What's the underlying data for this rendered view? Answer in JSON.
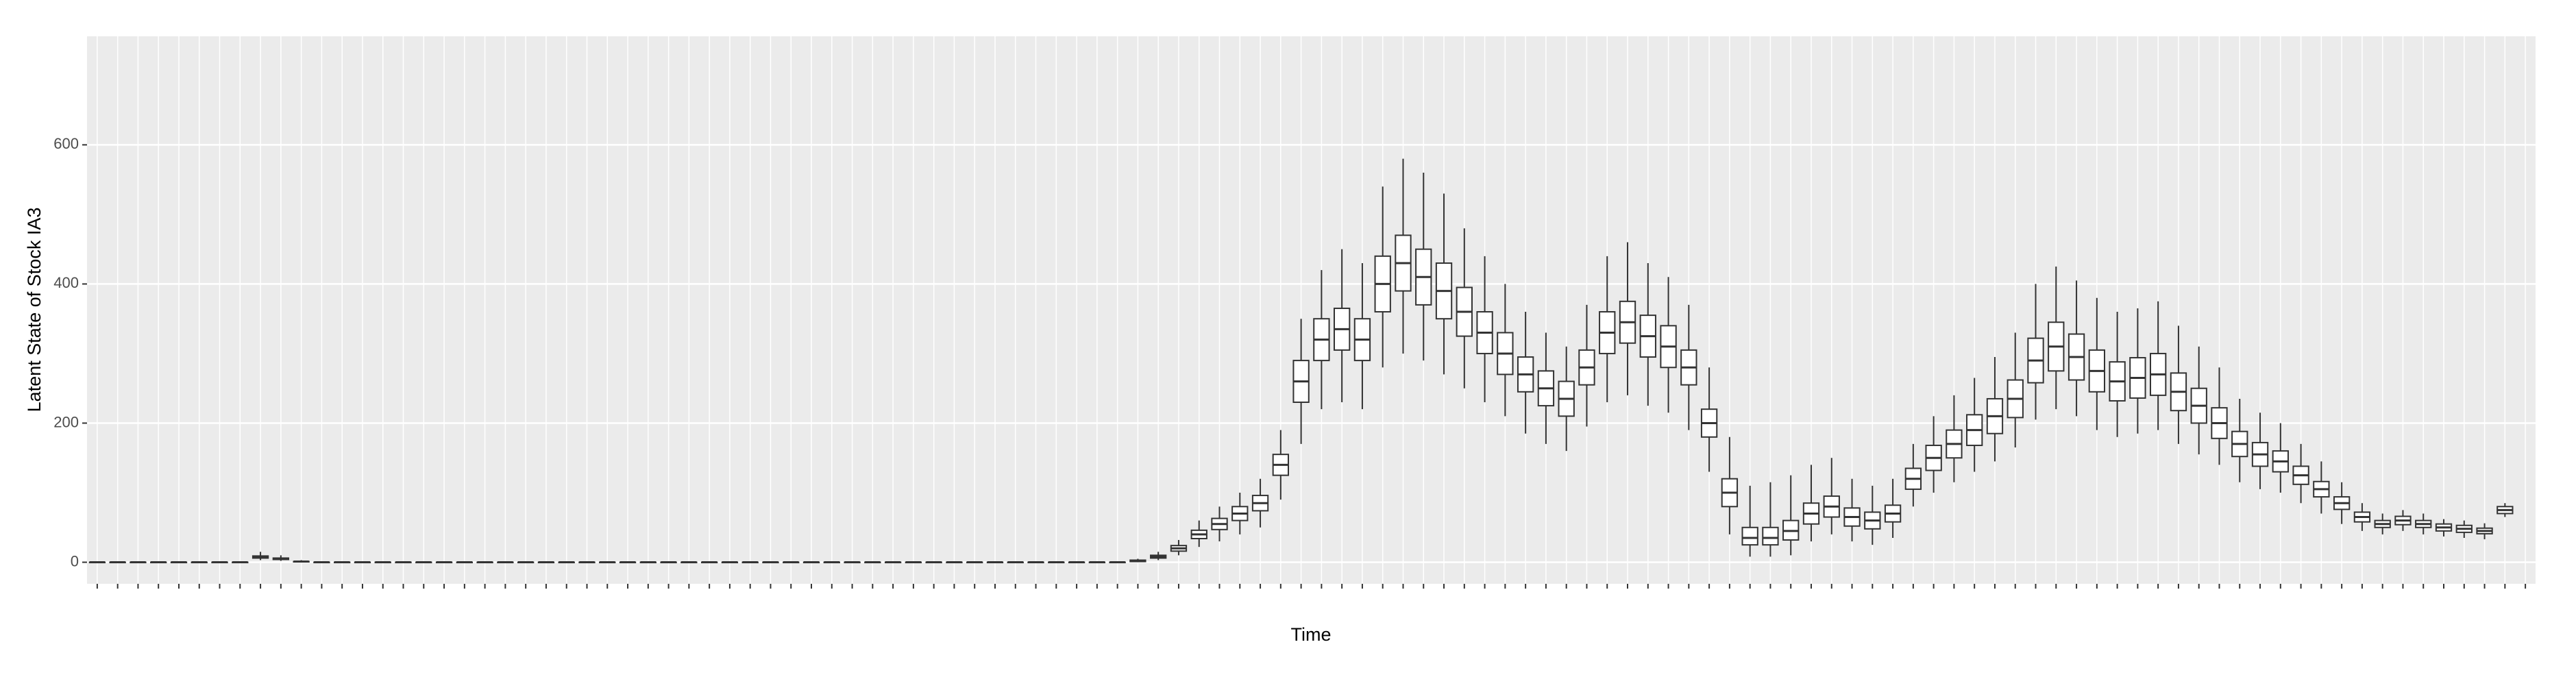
{
  "chart_data": {
    "type": "boxplot",
    "y_label": "Latent State of Stock IA3",
    "x_label": "Time",
    "ylim": [
      -31,
      756
    ],
    "yticks": [
      0,
      200,
      400,
      600
    ],
    "grid": true,
    "color": "#333333",
    "categories": [
      null,
      null,
      null,
      null,
      null,
      null,
      null,
      null,
      null,
      null,
      null,
      null,
      null,
      null,
      null,
      null,
      null,
      null,
      null,
      null,
      null,
      null,
      null,
      null,
      null,
      null,
      null,
      null,
      null,
      null,
      null,
      null,
      null,
      null,
      null,
      null,
      null,
      null,
      null,
      null,
      null,
      null,
      null,
      null,
      null,
      null,
      null,
      null,
      null,
      null,
      null,
      null,
      null,
      null,
      null,
      null,
      null,
      null,
      null,
      null,
      null,
      null,
      null,
      null,
      null,
      null,
      null,
      null,
      null,
      null,
      null,
      null,
      null,
      null,
      null,
      null,
      null,
      null,
      null,
      null,
      null,
      null,
      null,
      null,
      null,
      null,
      null,
      null,
      null,
      null,
      null,
      null,
      null,
      null,
      null,
      null,
      null,
      null,
      null,
      null,
      null,
      null,
      null,
      null,
      null,
      null,
      null,
      null,
      null,
      null,
      null,
      null,
      null,
      null,
      null,
      null,
      null,
      null,
      null,
      null
    ],
    "boxes": [
      [
        0,
        0,
        0,
        0,
        0
      ],
      [
        0,
        0,
        0,
        0,
        0
      ],
      [
        0,
        0,
        0,
        0,
        0
      ],
      [
        0,
        0,
        0,
        0,
        0
      ],
      [
        0,
        0,
        0,
        0,
        0
      ],
      [
        0,
        0,
        0,
        0,
        0
      ],
      [
        0,
        0,
        0,
        0,
        0
      ],
      [
        0,
        0,
        0,
        0,
        0
      ],
      [
        3,
        6,
        7,
        9,
        15
      ],
      [
        2,
        4,
        5,
        6,
        10
      ],
      [
        0,
        1,
        1,
        1,
        3
      ],
      [
        0,
        0,
        0,
        0,
        0
      ],
      [
        0,
        0,
        0,
        0,
        0
      ],
      [
        0,
        0,
        0,
        0,
        0
      ],
      [
        0,
        0,
        0,
        0,
        0
      ],
      [
        0,
        0,
        0,
        0,
        0
      ],
      [
        0,
        0,
        0,
        0,
        0
      ],
      [
        0,
        0,
        0,
        0,
        0
      ],
      [
        0,
        0,
        0,
        0,
        0
      ],
      [
        0,
        0,
        0,
        0,
        0
      ],
      [
        0,
        0,
        0,
        0,
        0
      ],
      [
        0,
        0,
        0,
        0,
        0
      ],
      [
        0,
        0,
        0,
        0,
        0
      ],
      [
        0,
        0,
        0,
        0,
        0
      ],
      [
        0,
        0,
        0,
        0,
        0
      ],
      [
        0,
        0,
        0,
        0,
        0
      ],
      [
        0,
        0,
        0,
        0,
        0
      ],
      [
        0,
        0,
        0,
        0,
        0
      ],
      [
        0,
        0,
        0,
        0,
        0
      ],
      [
        0,
        0,
        0,
        0,
        0
      ],
      [
        0,
        0,
        0,
        0,
        0
      ],
      [
        0,
        0,
        0,
        0,
        0
      ],
      [
        0,
        0,
        0,
        0,
        0
      ],
      [
        0,
        0,
        0,
        0,
        0
      ],
      [
        0,
        0,
        0,
        0,
        0
      ],
      [
        0,
        0,
        0,
        0,
        0
      ],
      [
        0,
        0,
        0,
        0,
        0
      ],
      [
        0,
        0,
        0,
        0,
        0
      ],
      [
        0,
        0,
        0,
        0,
        0
      ],
      [
        0,
        0,
        0,
        0,
        0
      ],
      [
        0,
        0,
        0,
        0,
        0
      ],
      [
        0,
        0,
        0,
        0,
        0
      ],
      [
        0,
        0,
        0,
        0,
        0
      ],
      [
        0,
        0,
        0,
        0,
        0
      ],
      [
        0,
        0,
        0,
        0,
        0
      ],
      [
        0,
        0,
        0,
        0,
        0
      ],
      [
        0,
        0,
        0,
        0,
        0
      ],
      [
        0,
        0,
        0,
        0,
        0
      ],
      [
        0,
        0,
        0,
        0,
        0
      ],
      [
        0,
        0,
        0,
        0,
        0
      ],
      [
        0,
        0,
        0,
        0,
        0
      ],
      [
        0,
        1,
        2,
        3,
        5
      ],
      [
        3,
        6,
        8,
        10,
        15
      ],
      [
        10,
        16,
        20,
        24,
        32
      ],
      [
        22,
        34,
        40,
        46,
        60
      ],
      [
        30,
        47,
        55,
        63,
        80
      ],
      [
        40,
        60,
        70,
        80,
        100
      ],
      [
        50,
        74,
        85,
        96,
        120
      ],
      [
        90,
        125,
        140,
        155,
        190
      ],
      [
        170,
        230,
        260,
        290,
        350
      ],
      [
        220,
        290,
        320,
        350,
        420
      ],
      [
        230,
        305,
        335,
        365,
        450
      ],
      [
        220,
        290,
        320,
        350,
        430
      ],
      [
        280,
        360,
        400,
        440,
        540
      ],
      [
        300,
        390,
        430,
        470,
        580
      ],
      [
        290,
        370,
        410,
        450,
        560
      ],
      [
        270,
        350,
        390,
        430,
        530
      ],
      [
        250,
        325,
        360,
        395,
        480
      ],
      [
        230,
        300,
        330,
        360,
        440
      ],
      [
        210,
        270,
        300,
        330,
        400
      ],
      [
        185,
        245,
        270,
        295,
        360
      ],
      [
        170,
        225,
        250,
        275,
        330
      ],
      [
        160,
        210,
        235,
        260,
        310
      ],
      [
        195,
        255,
        280,
        305,
        370
      ],
      [
        230,
        300,
        330,
        360,
        440
      ],
      [
        240,
        315,
        345,
        375,
        460
      ],
      [
        225,
        295,
        325,
        355,
        430
      ],
      [
        215,
        280,
        310,
        340,
        410
      ],
      [
        190,
        255,
        280,
        305,
        370
      ],
      [
        130,
        180,
        200,
        220,
        280
      ],
      [
        40,
        80,
        100,
        120,
        180
      ],
      [
        8,
        25,
        35,
        50,
        110
      ],
      [
        8,
        25,
        35,
        50,
        115
      ],
      [
        10,
        32,
        45,
        60,
        125
      ],
      [
        30,
        55,
        70,
        85,
        140
      ],
      [
        40,
        65,
        80,
        95,
        150
      ],
      [
        30,
        52,
        65,
        78,
        120
      ],
      [
        25,
        48,
        60,
        72,
        110
      ],
      [
        35,
        58,
        70,
        82,
        120
      ],
      [
        80,
        105,
        120,
        135,
        170
      ],
      [
        100,
        132,
        150,
        168,
        210
      ],
      [
        115,
        150,
        170,
        190,
        240
      ],
      [
        130,
        168,
        190,
        212,
        265
      ],
      [
        145,
        185,
        210,
        235,
        295
      ],
      [
        165,
        208,
        235,
        262,
        330
      ],
      [
        205,
        258,
        290,
        322,
        400
      ],
      [
        220,
        275,
        310,
        345,
        425
      ],
      [
        210,
        262,
        295,
        328,
        405
      ],
      [
        190,
        245,
        275,
        305,
        380
      ],
      [
        180,
        232,
        260,
        288,
        360
      ],
      [
        185,
        236,
        265,
        294,
        365
      ],
      [
        190,
        240,
        270,
        300,
        375
      ],
      [
        170,
        218,
        245,
        272,
        340
      ],
      [
        155,
        200,
        225,
        250,
        310
      ],
      [
        140,
        178,
        200,
        222,
        280
      ],
      [
        115,
        152,
        170,
        188,
        235
      ],
      [
        105,
        138,
        155,
        172,
        215
      ],
      [
        100,
        130,
        145,
        160,
        200
      ],
      [
        85,
        112,
        125,
        138,
        170
      ],
      [
        70,
        94,
        105,
        116,
        145
      ],
      [
        55,
        76,
        85,
        94,
        115
      ],
      [
        45,
        58,
        65,
        72,
        85
      ],
      [
        40,
        50,
        55,
        60,
        70
      ],
      [
        45,
        54,
        60,
        66,
        75
      ],
      [
        40,
        50,
        55,
        60,
        70
      ],
      [
        37,
        45,
        50,
        55,
        62
      ],
      [
        35,
        43,
        48,
        53,
        60
      ],
      [
        33,
        41,
        45,
        49,
        56
      ],
      [
        65,
        70,
        75,
        80,
        85
      ]
    ]
  }
}
